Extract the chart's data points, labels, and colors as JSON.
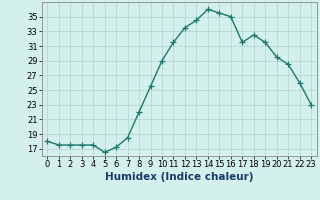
{
  "x": [
    0,
    1,
    2,
    3,
    4,
    5,
    6,
    7,
    8,
    9,
    10,
    11,
    12,
    13,
    14,
    15,
    16,
    17,
    18,
    19,
    20,
    21,
    22,
    23
  ],
  "y": [
    18,
    17.5,
    17.5,
    17.5,
    17.5,
    16.5,
    17.2,
    18.5,
    22,
    25.5,
    29,
    31.5,
    33.5,
    34.5,
    36,
    35.5,
    35,
    31.5,
    32.5,
    31.5,
    29.5,
    28.5,
    26,
    23
  ],
  "line_color": "#1a7a6e",
  "marker": "+",
  "marker_size": 4,
  "bg_color": "#d4f0ec",
  "grid_color": "#b8d8d4",
  "xlabel": "Humidex (Indice chaleur)",
  "xlim": [
    -0.5,
    23.5
  ],
  "ylim": [
    16,
    37
  ],
  "yticks": [
    17,
    19,
    21,
    23,
    25,
    27,
    29,
    31,
    33,
    35
  ],
  "xticks": [
    0,
    1,
    2,
    3,
    4,
    5,
    6,
    7,
    8,
    9,
    10,
    11,
    12,
    13,
    14,
    15,
    16,
    17,
    18,
    19,
    20,
    21,
    22,
    23
  ],
  "tick_fontsize": 6,
  "xlabel_fontsize": 7.5
}
